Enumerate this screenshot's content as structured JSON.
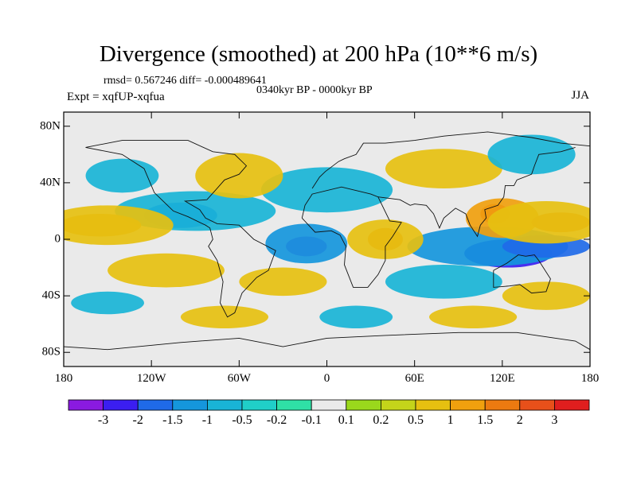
{
  "title": "Divergence (smoothed) at 200 hPa (10**6 m/s)",
  "stats": "rmsd= 0.567246 diff= -0.000489641",
  "period": "0340kyr BP - 0000kyr BP",
  "experiment": "Expt = xqfUP-xqfua",
  "season": "JJA",
  "lat_ticks": [
    {
      "label": "80N",
      "lat": 80
    },
    {
      "label": "40N",
      "lat": 40
    },
    {
      "label": "0",
      "lat": 0
    },
    {
      "label": "40S",
      "lat": -40
    },
    {
      "label": "80S",
      "lat": -80
    }
  ],
  "lon_ticks": [
    {
      "label": "180",
      "lon": -180
    },
    {
      "label": "120W",
      "lon": -120
    },
    {
      "label": "60W",
      "lon": -60
    },
    {
      "label": "0",
      "lon": 0
    },
    {
      "label": "60E",
      "lon": 60
    },
    {
      "label": "120E",
      "lon": 120
    },
    {
      "label": "180",
      "lon": 180
    }
  ],
  "colorbar": {
    "colors": [
      "#8a1ae0",
      "#3b1ef0",
      "#1f6ae8",
      "#1596dc",
      "#19b4d6",
      "#20cfc8",
      "#2fe0a6",
      "#eaeaea",
      "#9ad81c",
      "#c4d41a",
      "#e6c010",
      "#f0a00e",
      "#ec7a10",
      "#e8501a",
      "#e01e1e"
    ],
    "labels": [
      "-3",
      "-2",
      "-1.5",
      "-1",
      "-0.5",
      "-0.2",
      "-0.1",
      "0.1",
      "0.2",
      "0.5",
      "1",
      "1.5",
      "2",
      "3"
    ]
  },
  "map_data": {
    "description_levels": [
      -3,
      -2,
      -1.5,
      -1,
      -0.5,
      -0.2,
      -0.1,
      0.1,
      0.2,
      0.5,
      1,
      1.5,
      2,
      3
    ],
    "blobs": [
      {
        "lon": -14,
        "lat": -5,
        "rx": 14,
        "ry": 7,
        "level": 0
      },
      {
        "lon": -14,
        "lat": -3,
        "rx": 28,
        "ry": 14,
        "level": 3
      },
      {
        "lon": 124,
        "lat": -10,
        "rx": 30,
        "ry": 10,
        "level": 1
      },
      {
        "lon": 110,
        "lat": -5,
        "rx": 55,
        "ry": 14,
        "level": 3
      },
      {
        "lon": 150,
        "lat": -5,
        "rx": 30,
        "ry": 8,
        "level": 2
      },
      {
        "lon": -100,
        "lat": 17,
        "rx": 25,
        "ry": 9,
        "level": 2
      },
      {
        "lon": -90,
        "lat": 20,
        "rx": 55,
        "ry": 14,
        "level": 4
      },
      {
        "lon": -155,
        "lat": 10,
        "rx": 28,
        "ry": 8,
        "level": 11
      },
      {
        "lon": -150,
        "lat": 10,
        "rx": 45,
        "ry": 14,
        "level": 10
      },
      {
        "lon": 115,
        "lat": 18,
        "rx": 10,
        "ry": 7,
        "level": 13
      },
      {
        "lon": 120,
        "lat": 15,
        "rx": 25,
        "ry": 14,
        "level": 11
      },
      {
        "lon": 160,
        "lat": 12,
        "rx": 20,
        "ry": 7,
        "level": 12
      },
      {
        "lon": 150,
        "lat": 12,
        "rx": 40,
        "ry": 15,
        "level": 10
      },
      {
        "lon": 40,
        "lat": 0,
        "rx": 12,
        "ry": 8,
        "level": 12
      },
      {
        "lon": 40,
        "lat": 0,
        "rx": 26,
        "ry": 14,
        "level": 10
      },
      {
        "lon": -110,
        "lat": -22,
        "rx": 40,
        "ry": 12,
        "level": 10
      },
      {
        "lon": 0,
        "lat": 35,
        "rx": 45,
        "ry": 16,
        "level": 4
      },
      {
        "lon": -140,
        "lat": 45,
        "rx": 25,
        "ry": 12,
        "level": 4
      },
      {
        "lon": -60,
        "lat": 45,
        "rx": 30,
        "ry": 16,
        "level": 10
      },
      {
        "lon": 80,
        "lat": 50,
        "rx": 40,
        "ry": 14,
        "level": 10
      },
      {
        "lon": 140,
        "lat": 60,
        "rx": 30,
        "ry": 14,
        "level": 4
      },
      {
        "lon": -30,
        "lat": -30,
        "rx": 30,
        "ry": 10,
        "level": 10
      },
      {
        "lon": 80,
        "lat": -30,
        "rx": 40,
        "ry": 12,
        "level": 4
      },
      {
        "lon": 150,
        "lat": -40,
        "rx": 30,
        "ry": 10,
        "level": 10
      },
      {
        "lon": -150,
        "lat": -45,
        "rx": 25,
        "ry": 8,
        "level": 4
      },
      {
        "lon": -70,
        "lat": -55,
        "rx": 30,
        "ry": 8,
        "level": 10
      },
      {
        "lon": 20,
        "lat": -55,
        "rx": 25,
        "ry": 8,
        "level": 4
      },
      {
        "lon": 100,
        "lat": -55,
        "rx": 30,
        "ry": 8,
        "level": 10
      }
    ]
  }
}
